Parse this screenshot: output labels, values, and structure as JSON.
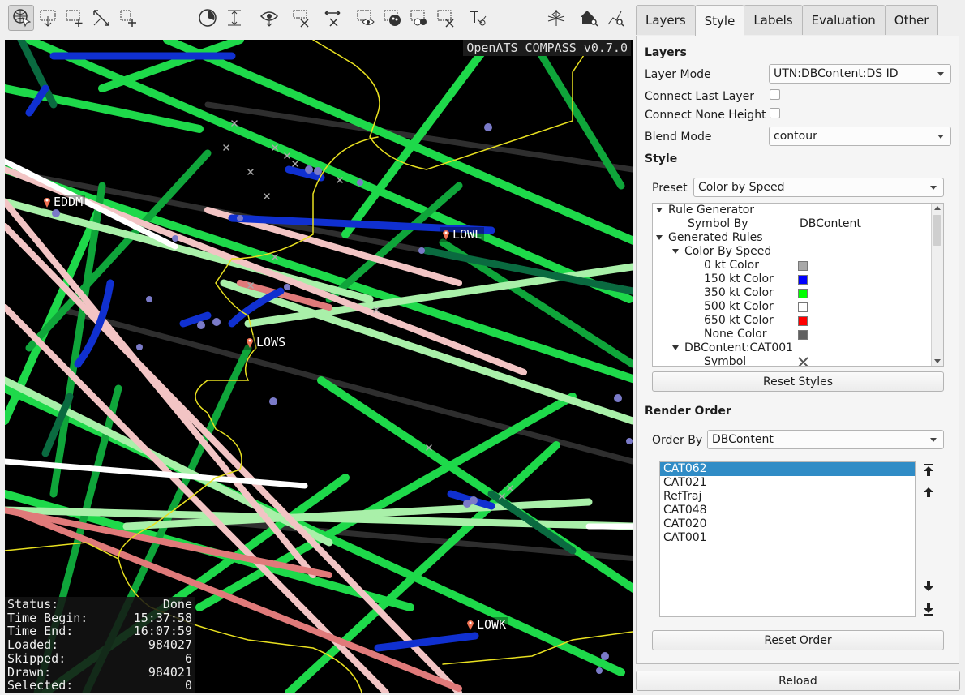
{
  "toolbar": {
    "buttons": [
      "navigate",
      "zoom-rect",
      "add-select",
      "move-select",
      "add-rect",
      "time-filter",
      "height-filter",
      "show",
      "hide-selected",
      "hide-unselected",
      "invert",
      "eye",
      "eye-color",
      "eye-two",
      "eye-x",
      "label",
      "axes",
      "home-zoom",
      "zoom-path"
    ]
  },
  "map": {
    "version": "OpenATS COMPASS v0.7.0",
    "airports": [
      {
        "name": "EDDM"
      },
      {
        "name": "LOWL"
      },
      {
        "name": "LOWS"
      },
      {
        "name": "LOWK"
      }
    ],
    "status": [
      {
        "label": "Status:",
        "value": "Done"
      },
      {
        "label": "Time Begin:",
        "value": "15:37:58"
      },
      {
        "label": "Time End:",
        "value": "16:07:59"
      },
      {
        "label": "Loaded:",
        "value": "984027"
      },
      {
        "label": "Skipped:",
        "value": "6"
      },
      {
        "label": "Drawn:",
        "value": "984021"
      },
      {
        "label": "Selected:",
        "value": "0"
      }
    ]
  },
  "panel": {
    "tabs": [
      "Layers",
      "Style",
      "Labels",
      "Evaluation",
      "Other"
    ],
    "selected_tab": "Style",
    "layers_heading": "Layers",
    "layer_mode_label": "Layer Mode",
    "layer_mode_value": "UTN:DBContent:DS ID",
    "connect_last_label": "Connect Last Layer",
    "connect_none_label": "Connect None Height",
    "blend_mode_label": "Blend Mode",
    "blend_mode_value": "contour",
    "style_heading": "Style",
    "preset_label": "Preset",
    "preset_value": "Color by Speed",
    "tree": {
      "rule_generator": "Rule Generator",
      "symbol_by": "Symbol By",
      "symbol_by_value": "DBContent",
      "generated_rules": "Generated Rules",
      "color_by_speed": "Color By Speed",
      "colors": [
        {
          "label": "0 kt Color",
          "color": "#a8a8a8"
        },
        {
          "label": "150 kt Color",
          "color": "#0000ff"
        },
        {
          "label": "350 kt Color",
          "color": "#00ff00"
        },
        {
          "label": "500 kt Color",
          "color": "#ffffff"
        },
        {
          "label": "650 kt Color",
          "color": "#ff0000"
        },
        {
          "label": "None Color",
          "color": "#606060"
        }
      ],
      "dbcontent": "DBContent:CAT001",
      "symbol": "Symbol"
    },
    "reset_styles": "Reset Styles",
    "render_order_heading": "Render Order",
    "order_by_label": "Order By",
    "order_by_value": "DBContent",
    "order_items": [
      "CAT062",
      "CAT021",
      "RefTraj",
      "CAT048",
      "CAT020",
      "CAT001"
    ],
    "reset_order": "Reset Order",
    "reload": "Reload"
  }
}
